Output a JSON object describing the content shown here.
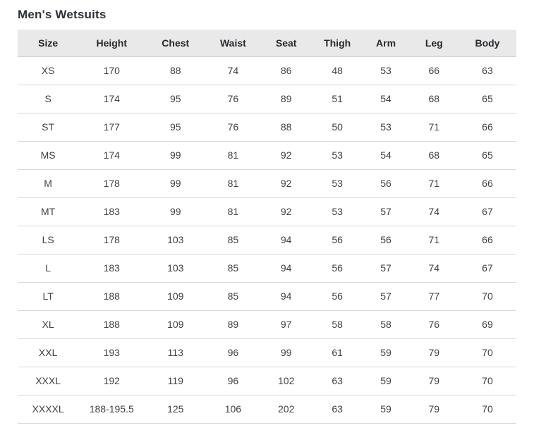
{
  "page": {
    "title": "Men's Wetsuits"
  },
  "table": {
    "headers": [
      "Size",
      "Height",
      "Chest",
      "Waist",
      "Seat",
      "Thigh",
      "Arm",
      "Leg",
      "Body"
    ],
    "rows": [
      [
        "XS",
        "170",
        "88",
        "74",
        "86",
        "48",
        "53",
        "66",
        "63"
      ],
      [
        "S",
        "174",
        "95",
        "76",
        "89",
        "51",
        "54",
        "68",
        "65"
      ],
      [
        "ST",
        "177",
        "95",
        "76",
        "88",
        "50",
        "53",
        "71",
        "66"
      ],
      [
        "MS",
        "174",
        "99",
        "81",
        "92",
        "53",
        "54",
        "68",
        "65"
      ],
      [
        "M",
        "178",
        "99",
        "81",
        "92",
        "53",
        "56",
        "71",
        "66"
      ],
      [
        "MT",
        "183",
        "99",
        "81",
        "92",
        "53",
        "57",
        "74",
        "67"
      ],
      [
        "LS",
        "178",
        "103",
        "85",
        "94",
        "56",
        "56",
        "71",
        "66"
      ],
      [
        "L",
        "183",
        "103",
        "85",
        "94",
        "56",
        "57",
        "74",
        "67"
      ],
      [
        "LT",
        "188",
        "109",
        "85",
        "94",
        "56",
        "57",
        "77",
        "70"
      ],
      [
        "XL",
        "188",
        "109",
        "89",
        "97",
        "58",
        "58",
        "76",
        "69"
      ],
      [
        "XXL",
        "193",
        "113",
        "96",
        "99",
        "61",
        "59",
        "79",
        "70"
      ],
      [
        "XXXL",
        "192",
        "119",
        "96",
        "102",
        "63",
        "59",
        "79",
        "70"
      ],
      [
        "XXXXL",
        "188-195.5",
        "125",
        "106",
        "202",
        "63",
        "59",
        "79",
        "70"
      ]
    ]
  },
  "colors": {
    "header_bg": "#e9e9e9",
    "row_border": "#d9d9d9",
    "title_text": "#2d3338",
    "cell_text": "#3d4247"
  }
}
